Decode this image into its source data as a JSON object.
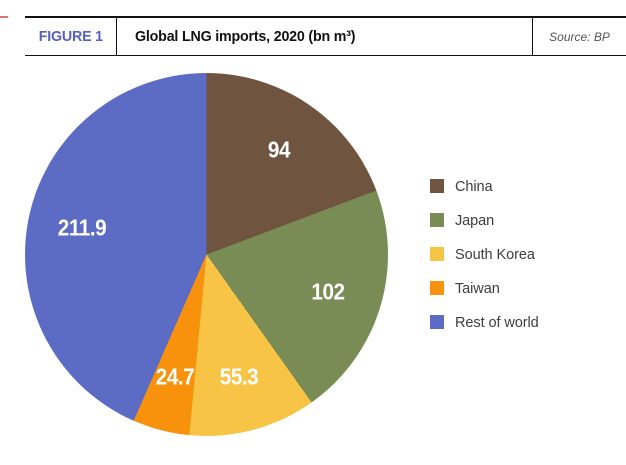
{
  "header": {
    "figure_label": "FIGURE 1",
    "title": "Global LNG imports, 2020 (bn m³)",
    "source": "Source: BP"
  },
  "chart_data": {
    "type": "pie",
    "title": "Global LNG imports, 2020 (bn m³)",
    "categories": [
      "China",
      "Japan",
      "South Korea",
      "Taiwan",
      "Rest of world"
    ],
    "values": [
      94,
      102,
      55.3,
      24.7,
      211.9
    ],
    "value_labels": [
      "94",
      "102",
      "55.3",
      "24.7",
      "211.9"
    ],
    "colors": [
      "#6F5440",
      "#7A8C55",
      "#F7C445",
      "#F8920D",
      "#5C6BC4"
    ],
    "unit": "bn m³",
    "start_angle_deg": 0,
    "direction": "clockwise",
    "legend_position": "right",
    "slice_label_color": "#FFFFFF"
  },
  "accent_colors": {
    "figure_label": "#5560C0",
    "rule": "#121212",
    "source_text": "#555555",
    "legend_text": "#3D3D3D"
  }
}
